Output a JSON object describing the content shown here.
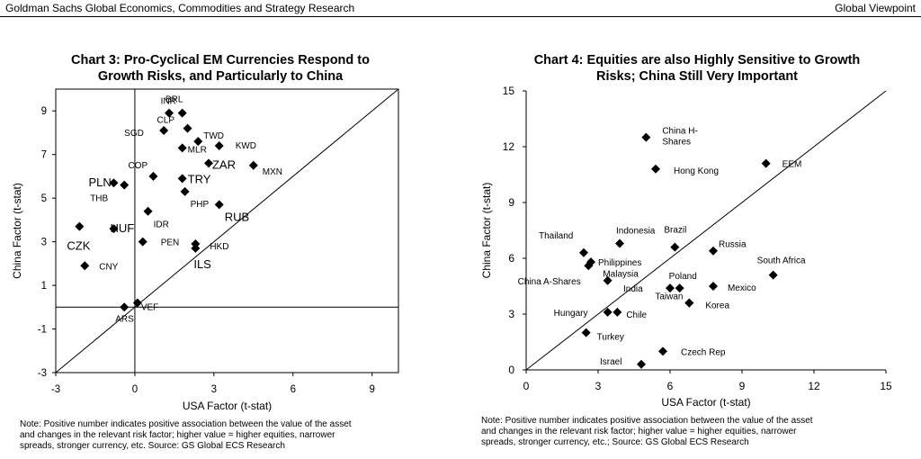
{
  "header": {
    "left": "Goldman Sachs Global Economics, Commodities and Strategy Research",
    "right": "Global Viewpoint"
  },
  "chart_data": [
    {
      "type": "scatter",
      "title_lines": [
        "Chart 3: Pro-Cyclical EM Currencies Respond to",
        "Growth Risks, and Particularly to China"
      ],
      "xlabel": "USA Factor (t-stat)",
      "ylabel": "China Factor (t-stat)",
      "xlim": [
        -3,
        10
      ],
      "ylim": [
        -3,
        10
      ],
      "xticks": [
        "-3",
        "0",
        "3",
        "6",
        "9"
      ],
      "yticks": [
        "-3",
        "-1",
        "1",
        "3",
        "5",
        "7",
        "9"
      ],
      "reference_lines": [
        "x=0",
        "y=0",
        "y=x"
      ],
      "points": [
        {
          "label": "BRL",
          "x": 1.3,
          "y": 8.9
        },
        {
          "label": "INR",
          "x": 1.8,
          "y": 8.9
        },
        {
          "label": "CLP",
          "x": 2.0,
          "y": 8.2
        },
        {
          "label": "SGD",
          "x": 1.1,
          "y": 8.1
        },
        {
          "label": "TWD",
          "x": 2.4,
          "y": 7.6
        },
        {
          "label": "MLR",
          "x": 1.8,
          "y": 7.3
        },
        {
          "label": "KWD",
          "x": 3.2,
          "y": 7.4
        },
        {
          "label": "COP",
          "x": 0.7,
          "y": 6.0
        },
        {
          "label": "ZAR",
          "x": 2.8,
          "y": 6.6
        },
        {
          "label": "MXN",
          "x": 4.5,
          "y": 6.5
        },
        {
          "label": "PLN",
          "x": -0.8,
          "y": 5.7
        },
        {
          "label": "THB",
          "x": -0.4,
          "y": 5.6
        },
        {
          "label": "TRY",
          "x": 1.8,
          "y": 5.9
        },
        {
          "label": "PHP",
          "x": 1.9,
          "y": 5.3
        },
        {
          "label": "RUB",
          "x": 3.2,
          "y": 4.7
        },
        {
          "label": "IDR",
          "x": 0.5,
          "y": 4.4
        },
        {
          "label": "CZK",
          "x": -2.1,
          "y": 3.7
        },
        {
          "label": "HUF",
          "x": -0.8,
          "y": 3.6
        },
        {
          "label": "PEN",
          "x": 0.3,
          "y": 3.0
        },
        {
          "label": "HKD",
          "x": 2.3,
          "y": 2.9
        },
        {
          "label": "ILS",
          "x": 2.3,
          "y": 2.7
        },
        {
          "label": "CNY",
          "x": -1.9,
          "y": 1.9
        },
        {
          "label": "VEF",
          "x": 0.1,
          "y": 0.2
        },
        {
          "label": "ARS",
          "x": -0.4,
          "y": 0.0
        }
      ]
    },
    {
      "type": "scatter",
      "title_lines": [
        "Chart 4: Equities are also Highly Sensitive to Growth",
        "Risks; China Still Very Important"
      ],
      "xlabel": "USA Factor (t-stat)",
      "ylabel": "China Factor (t-stat)",
      "xlim": [
        0,
        15
      ],
      "ylim": [
        0,
        15
      ],
      "xticks": [
        "0",
        "3",
        "6",
        "9",
        "12",
        "15"
      ],
      "yticks": [
        "0",
        "3",
        "6",
        "9",
        "12",
        "15"
      ],
      "reference_lines": [
        "y=x"
      ],
      "points": [
        {
          "label": "China H-Shares",
          "x": 5.0,
          "y": 12.5
        },
        {
          "label": "Hong Kong",
          "x": 5.4,
          "y": 10.8
        },
        {
          "label": "EEM",
          "x": 10.0,
          "y": 11.1
        },
        {
          "label": "Indonesia",
          "x": 3.9,
          "y": 6.8
        },
        {
          "label": "Brazil",
          "x": 6.2,
          "y": 6.6
        },
        {
          "label": "Thailand",
          "x": 2.4,
          "y": 6.3
        },
        {
          "label": "Russia",
          "x": 7.8,
          "y": 6.4
        },
        {
          "label": "Philippines",
          "x": 2.7,
          "y": 5.8
        },
        {
          "label": "Malaysia",
          "x": 2.6,
          "y": 5.6
        },
        {
          "label": "South Africa",
          "x": 10.3,
          "y": 5.1
        },
        {
          "label": "China A-Shares",
          "x": 3.4,
          "y": 4.8
        },
        {
          "label": "India",
          "x": 6.0,
          "y": 4.4
        },
        {
          "label": "Poland",
          "x": 6.4,
          "y": 4.4
        },
        {
          "label": "Mexico",
          "x": 7.8,
          "y": 4.5
        },
        {
          "label": "Taiwan",
          "x": 6.8,
          "y": 3.6
        },
        {
          "label": "Korea",
          "x": 6.8,
          "y": 3.6
        },
        {
          "label": "Hungary",
          "x": 3.4,
          "y": 3.1
        },
        {
          "label": "Chile",
          "x": 3.8,
          "y": 3.1
        },
        {
          "label": "Turkey",
          "x": 2.5,
          "y": 2.0
        },
        {
          "label": "Czech Rep",
          "x": 5.7,
          "y": 1.0
        },
        {
          "label": "Israel",
          "x": 4.8,
          "y": 0.3
        }
      ]
    }
  ],
  "notes": [
    [
      "Note: Positive number indicates positive association between the value of the asset",
      "and changes in the relevant risk factor; higher value = higher equities, narrower",
      "spreads, stronger currency, etc.  Source: GS Global  ECS Research"
    ],
    [
      "Note: Positive number indicates positive association between the value of the asset",
      "and changes in the relevant risk factor; higher value = higher equities, narrower",
      "spreads, stronger currency, etc.; Source: GS Global  ECS Research"
    ]
  ]
}
